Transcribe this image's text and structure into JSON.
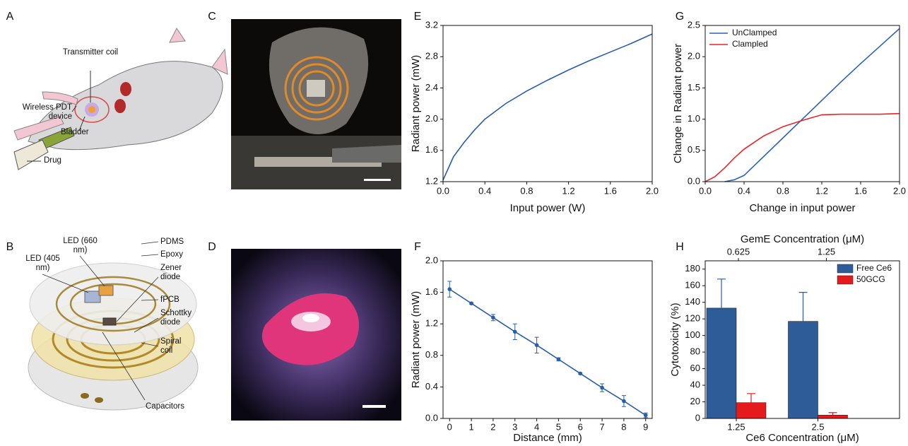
{
  "panel_labels": [
    "A",
    "B",
    "C",
    "D",
    "E",
    "F",
    "G",
    "H"
  ],
  "illustration_a": {
    "labels": [
      "Transmitter coil",
      "Wireless PDT device",
      "Bladder",
      "Drug"
    ]
  },
  "illustration_b": {
    "labels": [
      "LED (405 nm)",
      "LED (660 nm)",
      "PDMS",
      "Epoxy",
      "Zener diode",
      "fPCB",
      "Schottky diode",
      "Spiral coil",
      "Capacitors"
    ]
  },
  "chart_data": [
    {
      "type": "line",
      "xlabel": "Input power (W)",
      "ylabel": "Radiant power (mW)",
      "x": [
        0,
        0.1,
        0.2,
        0.3,
        0.4,
        0.6,
        0.8,
        1.0,
        1.2,
        1.4,
        1.6,
        1.8,
        2.0
      ],
      "values": [
        1.22,
        1.52,
        1.7,
        1.86,
        2.0,
        2.2,
        2.36,
        2.5,
        2.63,
        2.75,
        2.86,
        2.97,
        3.09
      ],
      "color": "#2a5caa",
      "xlim": [
        0,
        2
      ],
      "ylim": [
        1.2,
        3.2
      ],
      "xticks": [
        {
          "value": 0,
          "label": "0.0"
        },
        0.4,
        0.8,
        1.2,
        1.6,
        {
          "value": 2,
          "label": "2.0"
        }
      ],
      "yticks": [
        1.2,
        1.6,
        {
          "value": 2,
          "label": "2.0"
        },
        2.4,
        2.8,
        3.2
      ]
    },
    {
      "type": "line",
      "xlabel": "Change in input power",
      "ylabel": "Change in Radiant power",
      "x": [
        0,
        0.1,
        0.2,
        0.3,
        0.4,
        0.6,
        0.8,
        1.0,
        1.2,
        1.4,
        1.6,
        1.8,
        2.0
      ],
      "series": [
        {
          "name": "UnClamped",
          "color": "#2a62b8",
          "values": [
            null,
            null,
            0,
            0.03,
            0.1,
            0.4,
            0.7,
            1.0,
            1.3,
            1.6,
            1.89,
            2.17,
            2.45
          ]
        },
        {
          "name": "Clampled",
          "color": "#e8262a",
          "values": [
            0,
            0.08,
            0.22,
            0.38,
            0.52,
            0.73,
            0.88,
            0.98,
            1.07,
            1.08,
            1.08,
            1.08,
            1.09
          ]
        }
      ],
      "legend": "upper left",
      "xlim": [
        0,
        2
      ],
      "ylim": [
        0,
        2.5
      ],
      "xticks": [
        {
          "value": 0,
          "label": "0.0"
        },
        0.4,
        0.8,
        1.2,
        1.6,
        {
          "value": 2,
          "label": "2.0"
        }
      ],
      "yticks": [
        {
          "value": 0,
          "label": "0.0"
        },
        0.5,
        {
          "value": 1,
          "label": "1.0"
        },
        1.5,
        {
          "value": 2,
          "label": "2.0"
        },
        2.5
      ]
    },
    {
      "type": "line",
      "xlabel": "Distance (mm)",
      "ylabel": "Radiant power (mW)",
      "x": [
        0,
        1,
        2,
        3,
        4,
        5,
        6,
        7,
        8,
        9
      ],
      "values": [
        1.64,
        1.46,
        1.28,
        1.1,
        0.93,
        0.75,
        0.57,
        0.39,
        0.22,
        0.04
      ],
      "errors": [
        0.1,
        0.01,
        0.04,
        0.1,
        0.1,
        0.02,
        0.01,
        0.05,
        0.07,
        0.03
      ],
      "color": "#2b5ea8",
      "markers": true,
      "xlim": [
        -0.3,
        9.3
      ],
      "ylim": [
        0,
        2
      ],
      "xticks": [
        0,
        1,
        2,
        3,
        4,
        5,
        6,
        7,
        8,
        9
      ],
      "yticks": [
        {
          "value": 0,
          "label": "0.0"
        },
        0.4,
        0.8,
        1.2,
        1.6,
        {
          "value": 2,
          "label": "2.0"
        }
      ]
    },
    {
      "type": "bar",
      "xlabel": "Ce6 Concentration (μM)",
      "ylabel": "Cytotoxicity (%)",
      "x2label": "GemE Concentration (μM)",
      "x2categories": [
        "0.625",
        "1.25"
      ],
      "categories": [
        "1.25",
        "2.5"
      ],
      "series": [
        {
          "name": "Free Ce6",
          "color": "#2d5c99",
          "values": [
            133,
            117
          ],
          "errors": [
            35,
            35
          ]
        },
        {
          "name": "50GCG",
          "color": "#e41a1c",
          "values": [
            19,
            4
          ],
          "errors": [
            11,
            3
          ]
        }
      ],
      "legend": "upper right",
      "ylim": [
        0,
        190
      ],
      "yticks": [
        0,
        20,
        40,
        60,
        80,
        100,
        120,
        140,
        160,
        180
      ]
    }
  ]
}
